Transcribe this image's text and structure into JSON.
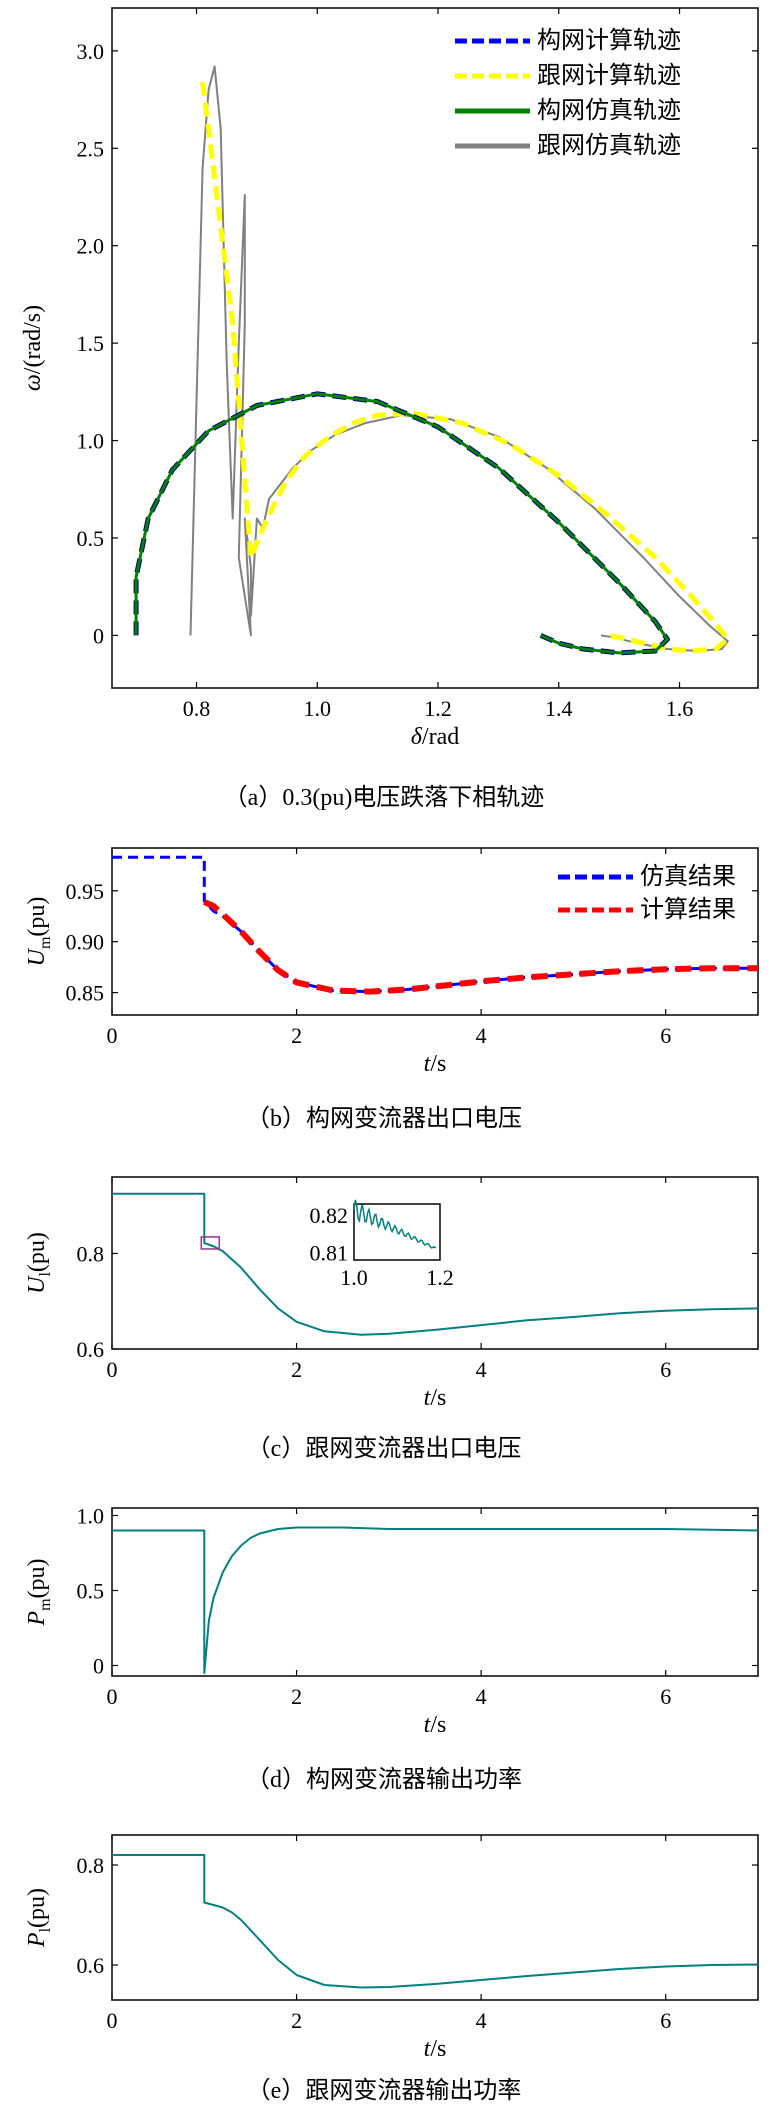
{
  "colors": {
    "grid_forming_calc": "#0000ff",
    "grid_following_calc": "#ffff00",
    "grid_forming_sim": "#008000",
    "grid_following_sim": "#808080",
    "teal_trace": "#008080",
    "red_calc": "#ff0000",
    "inset_box": "#993399"
  },
  "chart_data": [
    {
      "id": "a",
      "type": "line",
      "caption": "（a）0.3(pu)电压跌落下相轨迹",
      "xlabel_main": "δ",
      "xlabel_unit": "/rad",
      "ylabel_main": "ω",
      "ylabel_unit": "/(rad/s)",
      "xlim": [
        0.66,
        1.73
      ],
      "ylim": [
        -0.27,
        3.22
      ],
      "xticks": [
        "0.8",
        "1.0",
        "1.2",
        "1.4",
        "1.6"
      ],
      "yticks": [
        "0",
        "0.5",
        "1.0",
        "1.5",
        "2.0",
        "2.5",
        "3.0"
      ],
      "legend_position": "top-right",
      "series": [
        {
          "name": "构网计算轨迹",
          "style": "dashed",
          "color": "#0000ff",
          "x": [
            0.7,
            0.7,
            0.72,
            0.76,
            0.82,
            0.9,
            1.0,
            1.1,
            1.2,
            1.3,
            1.4,
            1.5,
            1.56,
            1.58,
            1.56,
            1.5,
            1.44,
            1.4,
            1.37
          ],
          "y": [
            0.0,
            0.3,
            0.6,
            0.85,
            1.05,
            1.18,
            1.24,
            1.2,
            1.07,
            0.86,
            0.58,
            0.27,
            0.07,
            -0.02,
            -0.08,
            -0.09,
            -0.07,
            -0.04,
            0.0
          ]
        },
        {
          "name": "跟网计算轨迹",
          "style": "dashed",
          "color": "#ffff00",
          "x": [
            0.81,
            0.82,
            0.84,
            0.86,
            0.87,
            0.88,
            0.89,
            0.91,
            0.93,
            0.95,
            0.98,
            1.02,
            1.06,
            1.1,
            1.16,
            1.24,
            1.32,
            1.4,
            1.48,
            1.56,
            1.62,
            1.66,
            1.68,
            1.66,
            1.62,
            1.58,
            1.54,
            1.5,
            1.48
          ],
          "y": [
            2.84,
            2.6,
            2.1,
            1.6,
            1.2,
            0.8,
            0.4,
            0.55,
            0.68,
            0.8,
            0.92,
            1.02,
            1.09,
            1.13,
            1.14,
            1.09,
            0.98,
            0.82,
            0.62,
            0.4,
            0.2,
            0.06,
            -0.02,
            -0.07,
            -0.08,
            -0.07,
            -0.04,
            -0.01,
            0.0
          ]
        },
        {
          "name": "构网仿真轨迹",
          "style": "solid",
          "color": "#008000",
          "x": [
            0.7,
            0.7,
            0.72,
            0.76,
            0.82,
            0.9,
            1.0,
            1.1,
            1.2,
            1.3,
            1.4,
            1.5,
            1.56,
            1.58,
            1.56,
            1.5,
            1.44,
            1.4,
            1.37
          ],
          "y": [
            0.0,
            0.3,
            0.6,
            0.85,
            1.05,
            1.18,
            1.24,
            1.2,
            1.07,
            0.86,
            0.58,
            0.27,
            0.07,
            -0.02,
            -0.08,
            -0.09,
            -0.07,
            -0.04,
            0.0
          ]
        },
        {
          "name": "跟网仿真轨迹",
          "style": "solid",
          "color": "#808080",
          "x": [
            0.79,
            0.8,
            0.81,
            0.82,
            0.83,
            0.84,
            0.85,
            0.86,
            0.87,
            0.88,
            0.88,
            0.87,
            0.88,
            0.89,
            0.88,
            0.89,
            0.89,
            0.9,
            0.91,
            0.92,
            0.94,
            0.96,
            0.99,
            1.03,
            1.08,
            1.14,
            1.22,
            1.3,
            1.38,
            1.46,
            1.54,
            1.6,
            1.65,
            1.68,
            1.67,
            1.63,
            1.58,
            1.53,
            1.49,
            1.47
          ],
          "y": [
            0.0,
            1.2,
            2.4,
            2.8,
            2.92,
            2.6,
            1.4,
            0.6,
            1.5,
            2.26,
            1.6,
            0.4,
            0.2,
            0.0,
            0.6,
            0.35,
            0.1,
            0.6,
            0.55,
            0.7,
            0.78,
            0.86,
            0.95,
            1.03,
            1.09,
            1.13,
            1.11,
            1.02,
            0.86,
            0.65,
            0.4,
            0.2,
            0.05,
            -0.03,
            -0.07,
            -0.08,
            -0.07,
            -0.04,
            -0.01,
            0.0
          ]
        }
      ]
    },
    {
      "id": "b",
      "type": "line",
      "caption": "（b）构网变流器出口电压",
      "xlabel_main": "t",
      "xlabel_unit": "/s",
      "ylabel_main": "U",
      "ylabel_sub": "m",
      "ylabel_unit": "(pu)",
      "xlim": [
        0,
        7
      ],
      "ylim": [
        0.828,
        0.992
      ],
      "xticks": [
        "0",
        "2",
        "4",
        "6"
      ],
      "yticks": [
        "0.85",
        "0.90",
        "0.95"
      ],
      "legend_position": "top-right",
      "series": [
        {
          "name": "仿真结果",
          "style": "dashed",
          "color": "#0000ff",
          "x": [
            0,
            1.0,
            1.0,
            1.05,
            1.1,
            1.2,
            1.4,
            1.6,
            1.8,
            2.0,
            2.4,
            2.8,
            3.2,
            3.6,
            4.0,
            4.5,
            5.0,
            5.5,
            6.0,
            6.5,
            7.0
          ],
          "y": [
            0.983,
            0.983,
            0.94,
            0.935,
            0.93,
            0.925,
            0.91,
            0.89,
            0.872,
            0.86,
            0.852,
            0.851,
            0.853,
            0.857,
            0.861,
            0.865,
            0.868,
            0.871,
            0.873,
            0.874,
            0.874
          ]
        },
        {
          "name": "计算结果",
          "style": "dashed",
          "color": "#ff0000",
          "x": [
            1.0,
            1.1,
            1.2,
            1.4,
            1.6,
            1.8,
            2.0,
            2.4,
            2.8,
            3.2,
            3.6,
            4.0,
            4.5,
            5.0,
            5.5,
            6.0,
            6.5,
            7.0
          ],
          "y": [
            0.939,
            0.935,
            0.927,
            0.91,
            0.89,
            0.872,
            0.86,
            0.852,
            0.851,
            0.853,
            0.857,
            0.861,
            0.865,
            0.868,
            0.871,
            0.873,
            0.874,
            0.874
          ]
        }
      ]
    },
    {
      "id": "c",
      "type": "line",
      "caption": "（c）跟网变流器出口电压",
      "xlabel_main": "t",
      "xlabel_unit": "/s",
      "ylabel_main": "U",
      "ylabel_sub": "l",
      "ylabel_unit": "(pu)",
      "xlim": [
        0,
        7
      ],
      "ylim": [
        0.6,
        0.96
      ],
      "xticks": [
        "0",
        "2",
        "4",
        "6"
      ],
      "yticks": [
        "0.6",
        "0.8"
      ],
      "inset": {
        "xticks": [
          "1.0",
          "1.2"
        ],
        "yticks": [
          "0.81",
          "0.82"
        ],
        "xlim": [
          1.0,
          1.2
        ],
        "ylim": [
          0.808,
          0.823
        ]
      },
      "series": [
        {
          "name": "",
          "style": "solid",
          "color": "#008080",
          "x": [
            0,
            1.0,
            1.0,
            1.1,
            1.2,
            1.4,
            1.6,
            1.8,
            2.0,
            2.3,
            2.7,
            3.0,
            3.5,
            4.0,
            4.5,
            5.0,
            5.5,
            6.0,
            6.5,
            7.0
          ],
          "y": [
            0.925,
            0.925,
            0.822,
            0.815,
            0.805,
            0.77,
            0.725,
            0.685,
            0.657,
            0.637,
            0.63,
            0.632,
            0.64,
            0.65,
            0.66,
            0.667,
            0.675,
            0.68,
            0.683,
            0.685
          ]
        }
      ]
    },
    {
      "id": "d",
      "type": "line",
      "caption": "（d）构网变流器输出功率",
      "xlabel_main": "t",
      "xlabel_unit": "/s",
      "ylabel_main": "P",
      "ylabel_sub": "m",
      "ylabel_unit": "(pu)",
      "xlim": [
        0,
        7
      ],
      "ylim": [
        -0.07,
        1.05
      ],
      "xticks": [
        "0",
        "2",
        "4",
        "6"
      ],
      "yticks": [
        "0",
        "0.5",
        "1.0"
      ],
      "series": [
        {
          "name": "",
          "style": "solid",
          "color": "#008080",
          "x": [
            0,
            1.0,
            1.0,
            1.05,
            1.1,
            1.2,
            1.3,
            1.4,
            1.5,
            1.6,
            1.8,
            2.0,
            2.5,
            3.0,
            4.0,
            5.0,
            6.0,
            7.0
          ],
          "y": [
            0.9,
            0.9,
            -0.05,
            0.3,
            0.45,
            0.62,
            0.73,
            0.8,
            0.85,
            0.88,
            0.91,
            0.92,
            0.92,
            0.91,
            0.91,
            0.91,
            0.91,
            0.9
          ]
        }
      ]
    },
    {
      "id": "e",
      "type": "line",
      "caption": "（e）跟网变流器输出功率",
      "xlabel_main": "t",
      "xlabel_unit": "/s",
      "ylabel_main": "P",
      "ylabel_sub": "l",
      "ylabel_unit": "(pu)",
      "xlim": [
        0,
        7
      ],
      "ylim": [
        0.53,
        0.86
      ],
      "xticks": [
        "0",
        "2",
        "4",
        "6"
      ],
      "yticks": [
        "0.6",
        "0.8"
      ],
      "series": [
        {
          "name": "",
          "style": "solid",
          "color": "#008080",
          "x": [
            0,
            1.0,
            1.0,
            1.1,
            1.2,
            1.3,
            1.4,
            1.6,
            1.8,
            2.0,
            2.3,
            2.7,
            3.0,
            3.5,
            4.0,
            4.5,
            5.0,
            5.5,
            6.0,
            6.5,
            7.0
          ],
          "y": [
            0.82,
            0.82,
            0.725,
            0.72,
            0.715,
            0.705,
            0.69,
            0.65,
            0.61,
            0.58,
            0.56,
            0.555,
            0.556,
            0.562,
            0.57,
            0.578,
            0.585,
            0.592,
            0.597,
            0.6,
            0.601
          ]
        }
      ]
    }
  ]
}
